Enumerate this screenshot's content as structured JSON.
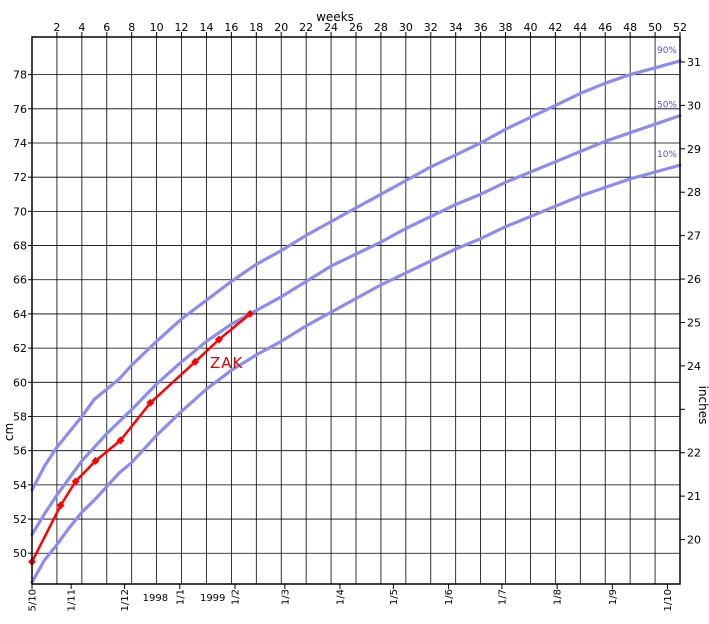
{
  "chart_data": {
    "type": "line",
    "title": "",
    "top_axis": {
      "label": "weeks",
      "range": [
        0,
        52
      ],
      "tick_labels": [
        "2",
        "4",
        "6",
        "8",
        "10",
        "12",
        "14",
        "16",
        "18",
        "20",
        "22",
        "24",
        "26",
        "28",
        "30",
        "32",
        "34",
        "36",
        "38",
        "40",
        "42",
        "44",
        "46",
        "48",
        "50",
        "52"
      ]
    },
    "left_axis": {
      "label": "cm",
      "range": [
        48.2,
        80.2
      ],
      "tick_labels": [
        "50",
        "52",
        "54",
        "56",
        "58",
        "60",
        "62",
        "64",
        "66",
        "68",
        "70",
        "72",
        "74",
        "76",
        "78"
      ]
    },
    "right_axis": {
      "label": "inches",
      "tick_labels": [
        "20",
        "21",
        "22",
        "",
        "24",
        "25",
        "26",
        "27",
        "28",
        "29",
        "30",
        "31"
      ],
      "tick_values_cm": [
        50.8,
        53.34,
        55.88,
        58.42,
        60.96,
        63.5,
        66.04,
        68.58,
        71.12,
        73.66,
        76.2,
        78.74
      ]
    },
    "x_date_labels": [
      "5/10",
      "1/11",
      "1/12",
      "1/1",
      "1/2",
      "1/3",
      "1/4",
      "1/5",
      "1/6",
      "1/7",
      "1/8",
      "1/9",
      "1/10"
    ],
    "x_date_weeks": [
      0,
      3.14,
      7.43,
      11.86,
      16.29,
      20.29,
      24.71,
      29.0,
      33.43,
      37.71,
      42.14,
      46.57,
      51.0
    ],
    "year_labels": [
      {
        "text": "1998",
        "week": 9.9
      },
      {
        "text": "1999",
        "week": 14.5
      }
    ],
    "grid": true,
    "series": [
      {
        "name": "90%",
        "color": "#8c8cf0",
        "x": [
          0,
          1,
          2,
          3,
          4,
          5,
          6,
          7,
          8,
          10,
          12,
          14,
          16,
          18,
          20,
          22,
          24,
          26,
          28,
          30,
          32,
          34,
          36,
          38,
          40,
          42,
          44,
          46,
          48,
          50,
          52
        ],
        "y": [
          53.7,
          55.1,
          56.2,
          57.1,
          58.0,
          59.0,
          59.6,
          60.2,
          61.0,
          62.4,
          63.7,
          64.8,
          65.9,
          66.9,
          67.7,
          68.6,
          69.4,
          70.2,
          71.0,
          71.8,
          72.6,
          73.3,
          74.0,
          74.8,
          75.5,
          76.2,
          76.9,
          77.5,
          78.0,
          78.4,
          78.8
        ]
      },
      {
        "name": "50%",
        "color": "#8c8cf0",
        "x": [
          0,
          1,
          2,
          3,
          4,
          5,
          6,
          7,
          8,
          10,
          12,
          14,
          16,
          18,
          20,
          22,
          24,
          26,
          28,
          30,
          32,
          34,
          36,
          38,
          40,
          42,
          44,
          46,
          48,
          50,
          52
        ],
        "y": [
          51.1,
          52.3,
          53.4,
          54.4,
          55.4,
          56.2,
          57.0,
          57.7,
          58.4,
          59.9,
          61.2,
          62.4,
          63.4,
          64.2,
          65.0,
          65.9,
          66.8,
          67.5,
          68.2,
          69.0,
          69.7,
          70.4,
          71.0,
          71.7,
          72.3,
          72.9,
          73.5,
          74.1,
          74.6,
          75.1,
          75.6
        ]
      },
      {
        "name": "10%",
        "color": "#8c8cf0",
        "x": [
          0,
          1,
          2,
          3,
          4,
          5,
          6,
          7,
          8,
          10,
          12,
          14,
          16,
          18,
          20,
          22,
          24,
          26,
          28,
          30,
          32,
          34,
          36,
          38,
          40,
          42,
          44,
          46,
          48,
          50,
          52
        ],
        "y": [
          48.3,
          49.6,
          50.5,
          51.5,
          52.4,
          53.1,
          53.9,
          54.7,
          55.3,
          56.9,
          58.3,
          59.6,
          60.7,
          61.6,
          62.4,
          63.3,
          64.1,
          64.9,
          65.7,
          66.4,
          67.1,
          67.8,
          68.4,
          69.1,
          69.7,
          70.3,
          70.9,
          71.4,
          71.9,
          72.3,
          72.7
        ]
      },
      {
        "name": "ZAK",
        "color": "#ff0000",
        "x": [
          0,
          2.3,
          3.5,
          5.1,
          7.1,
          9.5,
          13.1,
          15.0,
          17.5
        ],
        "y": [
          49.5,
          52.8,
          54.2,
          55.4,
          56.6,
          58.8,
          61.2,
          62.5,
          64.0
        ]
      }
    ],
    "curve_labels": [
      "90%",
      "50%",
      "10%"
    ],
    "name_label": "ZAK"
  }
}
